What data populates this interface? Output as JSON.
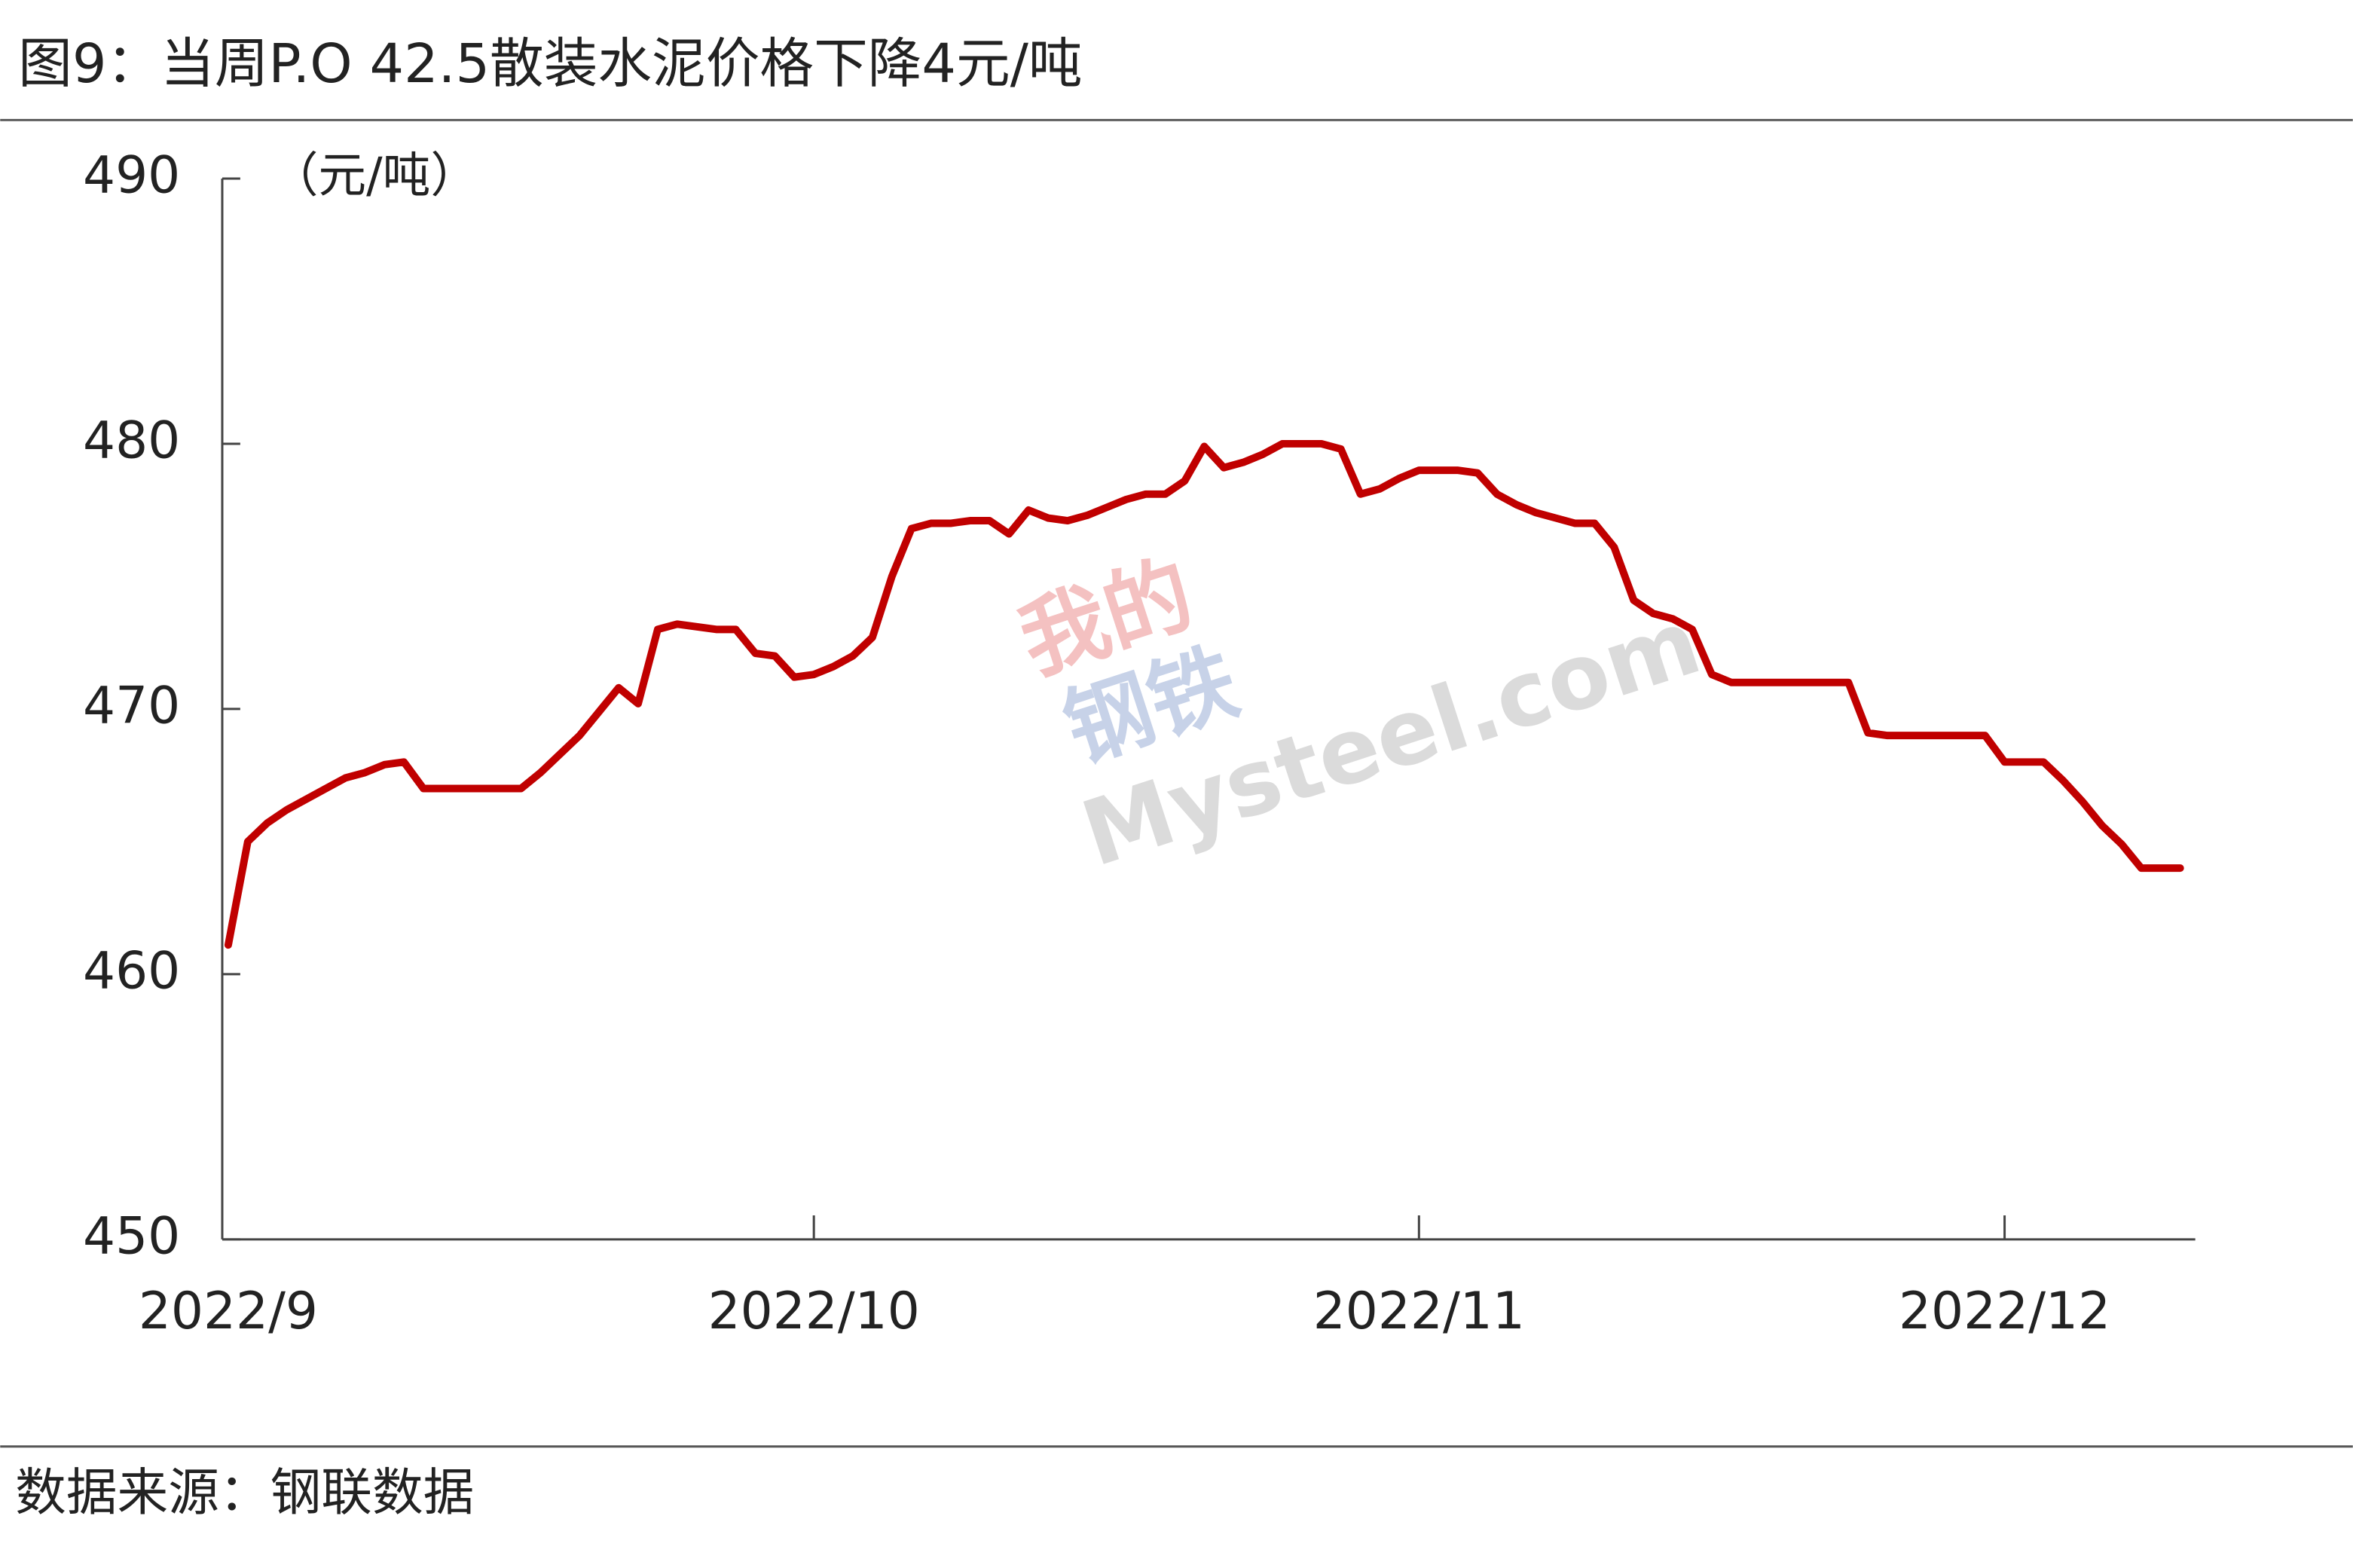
{
  "chart_data": {
    "type": "line",
    "title": "图9：当周P.O 42.5散装水泥价格下降4元/吨",
    "y_label": "（元/吨）",
    "source": "数据来源：钢联数据",
    "watermark": [
      "我的",
      "钢铁",
      "Mysteel.com"
    ],
    "categories": [
      "2022/9",
      null,
      null,
      null,
      null,
      null,
      null,
      null,
      null,
      null,
      null,
      null,
      null,
      null,
      null,
      null,
      null,
      null,
      null,
      null,
      null,
      null,
      null,
      null,
      null,
      null,
      null,
      null,
      null,
      null,
      "2022/10",
      null,
      null,
      null,
      null,
      null,
      null,
      null,
      null,
      null,
      null,
      null,
      null,
      null,
      null,
      null,
      null,
      null,
      null,
      null,
      null,
      null,
      null,
      null,
      null,
      null,
      null,
      null,
      null,
      null,
      null,
      "2022/11",
      null,
      null,
      null,
      null,
      null,
      null,
      null,
      null,
      null,
      null,
      null,
      null,
      null,
      null,
      null,
      null,
      null,
      null,
      null,
      null,
      null,
      null,
      null,
      null,
      null,
      null,
      null,
      null,
      null,
      "2022/12",
      null,
      null,
      null,
      null,
      null,
      null,
      null,
      null,
      null
    ],
    "values": [
      461.1,
      465,
      465.7,
      466.2,
      466.6,
      467,
      467.4,
      467.6,
      467.9,
      468,
      467,
      467,
      467,
      467,
      467,
      467,
      467.6,
      468.3,
      469,
      469.9,
      470.8,
      470.2,
      473,
      473.2,
      473.1,
      473,
      473,
      472.1,
      472,
      471.2,
      471.3,
      471.6,
      472,
      472.7,
      475,
      476.8,
      477,
      477,
      477.1,
      477.1,
      476.6,
      477.5,
      477.2,
      477.1,
      477.3,
      477.6,
      477.9,
      478.1,
      478.1,
      478.6,
      479.9,
      479.1,
      479.3,
      479.6,
      480,
      480,
      480,
      479.8,
      478.1,
      478.3,
      478.7,
      479,
      479,
      479,
      478.9,
      478.1,
      477.7,
      477.4,
      477.2,
      477,
      477,
      476.1,
      474.1,
      473.6,
      473.4,
      473,
      471.3,
      471,
      471,
      471,
      471,
      471,
      471,
      471,
      469.1,
      469,
      469,
      469,
      469,
      469,
      469,
      468,
      468,
      468,
      467.3,
      466.5,
      465.6,
      464.9,
      464,
      464,
      464
    ],
    "color": "#c00000",
    "ylim": [
      450,
      490
    ],
    "yticks": [
      450,
      460,
      470,
      480,
      490
    ]
  }
}
